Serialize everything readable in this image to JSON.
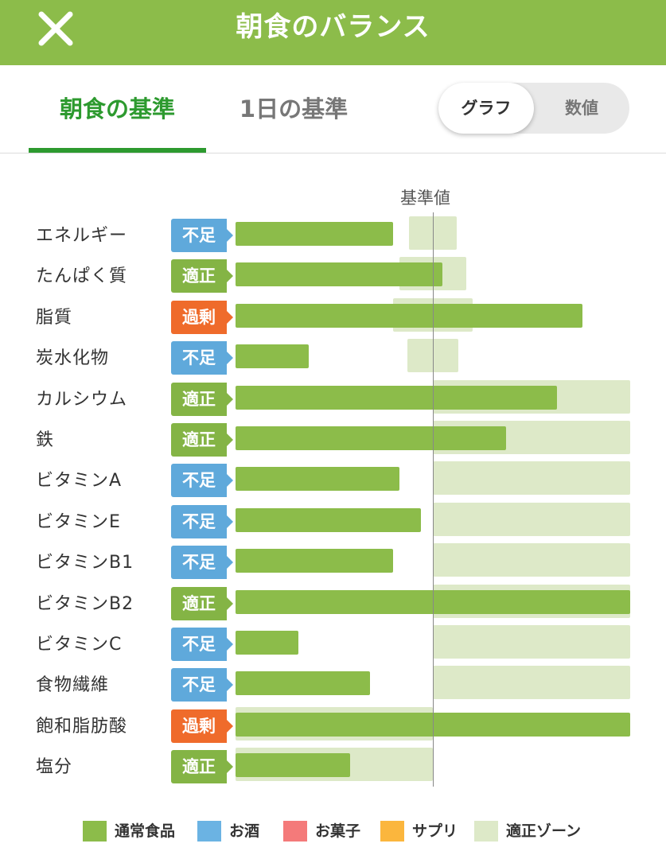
{
  "header": {
    "title": "朝食のバランス",
    "close_icon": "close-icon"
  },
  "tabs": [
    {
      "label": "朝食の基準",
      "active": true
    },
    {
      "label": "1日の基準",
      "active": false
    }
  ],
  "view_toggle": {
    "options": [
      "グラフ",
      "数値"
    ],
    "selected": "グラフ"
  },
  "colors": {
    "header": "#8cbc4a",
    "bar": "#8cbc4a",
    "zone": "#dde9c8",
    "status_low": "#5fa9db",
    "status_ok": "#84b445",
    "status_over": "#ef6b2b",
    "legend_alcohol": "#6bb3e3",
    "legend_sweets": "#f47a7a",
    "legend_supplement": "#fbb63d"
  },
  "chart_data": {
    "type": "bar",
    "orientation": "horizontal",
    "reference_label": "基準値",
    "reference_value": 100,
    "x_scale_note": "0 at bar start, reference line at 100",
    "categories": [
      "エネルギー",
      "たんぱく質",
      "脂質",
      "炭水化物",
      "カルシウム",
      "鉄",
      "ビタミンA",
      "ビタミンE",
      "ビタミンB1",
      "ビタミンB2",
      "ビタミンC",
      "食物繊維",
      "飽和脂肪酸",
      "塩分"
    ],
    "status": [
      "不足",
      "適正",
      "過剰",
      "不足",
      "適正",
      "適正",
      "不足",
      "不足",
      "不足",
      "適正",
      "不足",
      "不足",
      "過剰",
      "適正"
    ],
    "status_kind": [
      "low",
      "ok",
      "over",
      "low",
      "ok",
      "ok",
      "low",
      "low",
      "low",
      "ok",
      "low",
      "low",
      "over",
      "ok"
    ],
    "values": [
      80,
      105,
      176,
      37,
      163,
      137,
      83,
      94,
      80,
      200,
      32,
      68,
      200,
      58
    ],
    "zones": [
      [
        88,
        112
      ],
      [
        83,
        117
      ],
      [
        80,
        120
      ],
      [
        87,
        113
      ],
      [
        100,
        200
      ],
      [
        100,
        200
      ],
      [
        100,
        200
      ],
      [
        100,
        200
      ],
      [
        100,
        200
      ],
      [
        100,
        200
      ],
      [
        100,
        200
      ],
      [
        100,
        200
      ],
      [
        0,
        100
      ],
      [
        0,
        100
      ]
    ],
    "legend": [
      {
        "label": "通常食品",
        "color": "#8cbc4a"
      },
      {
        "label": "お酒",
        "color": "#6bb3e3"
      },
      {
        "label": "お菓子",
        "color": "#f47a7a"
      },
      {
        "label": "サプリ",
        "color": "#fbb63d"
      },
      {
        "label": "適正ゾーン",
        "color": "#dde9c8"
      }
    ]
  }
}
